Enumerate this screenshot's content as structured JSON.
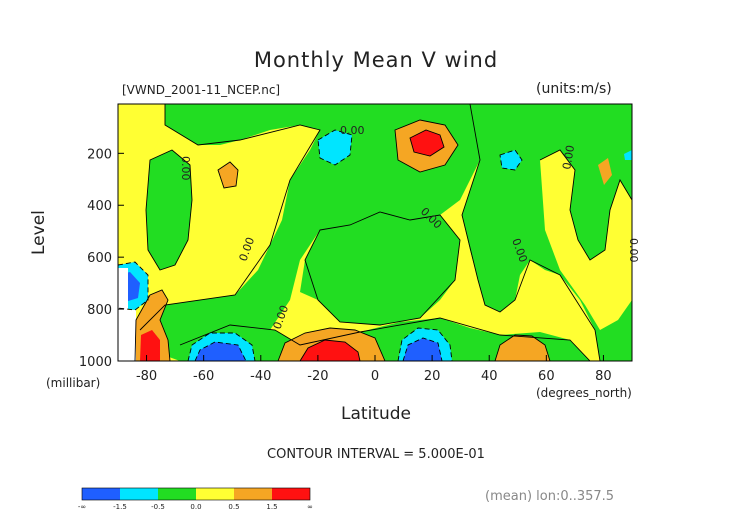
{
  "chart_data": {
    "type": "heatmap",
    "title": "Monthly Mean V wind",
    "file_label": "[VWND_2001-11_NCEP.nc]",
    "units_label": "(units:m/s)",
    "xlabel": "Latitude",
    "xunit": "(degrees_north)",
    "ylabel": "Level",
    "yunit": "(millibar)",
    "x_ticks": [
      -80,
      -60,
      -40,
      -20,
      0,
      20,
      40,
      60,
      80
    ],
    "y_ticks": [
      200,
      400,
      600,
      800,
      1000
    ],
    "xlim": [
      -90,
      90
    ],
    "ylim": [
      1000,
      10
    ],
    "contour_interval_label": "CONTOUR INTERVAL = 5.000E-01",
    "contour_labels": [
      "0.00",
      "0.00",
      "0.00",
      "0.00",
      "0.00",
      "0.00",
      "0.00",
      "0.00",
      "0.00"
    ],
    "colorbar": {
      "bins": [
        {
          "range": "< -1.5",
          "color": "#1f5fff"
        },
        {
          "range": "-1.5 to -0.5",
          "color": "#00e5ff"
        },
        {
          "range": "-0.5 to 0.0",
          "color": "#22dd22"
        },
        {
          "range": "0.0 to 0.5",
          "color": "#ffff33"
        },
        {
          "range": "0.5 to 1.5",
          "color": "#f5a623"
        },
        {
          "range": "> 1.5",
          "color": "#ff1111"
        }
      ],
      "tick_labels": [
        "-∞",
        "-1.5",
        "-0.5",
        "0.0",
        "0.5",
        "1.5",
        "∞"
      ]
    },
    "regions": [
      {
        "sign": "positive",
        "level": "strong",
        "lat": 14,
        "p": 150
      },
      {
        "sign": "negative",
        "level": "moderate",
        "lat": -12,
        "p": 160
      },
      {
        "sign": "negative",
        "level": "moderate",
        "lat": 52,
        "p": 190
      },
      {
        "sign": "positive",
        "level": "strong",
        "lat": -18,
        "p": 980
      },
      {
        "sign": "negative",
        "level": "strong",
        "lat": 15,
        "p": 970
      },
      {
        "sign": "negative",
        "level": "strong",
        "lat": -55,
        "p": 970
      },
      {
        "sign": "negative",
        "level": "strong",
        "lat": -86,
        "p": 700
      },
      {
        "sign": "positive",
        "level": "strong",
        "lat": -80,
        "p": 980
      },
      {
        "sign": "positive",
        "level": "moderate",
        "lat": 50,
        "p": 970
      }
    ],
    "mean_label": "(mean) lon:0..357.5"
  }
}
